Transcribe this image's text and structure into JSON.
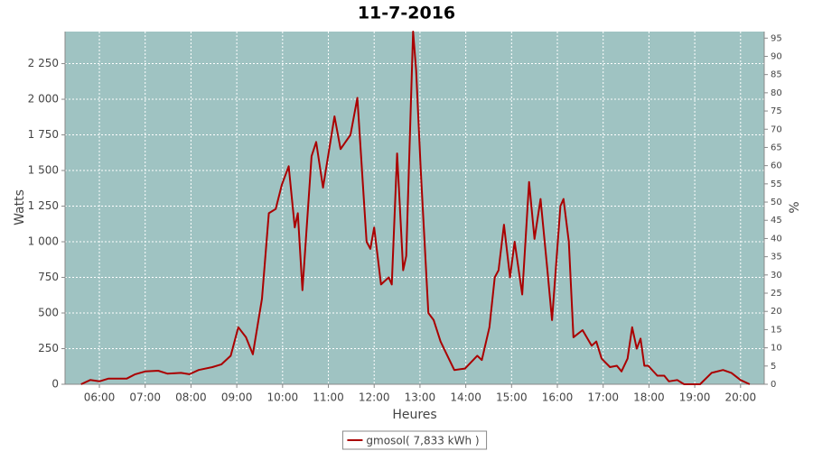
{
  "chart_data": {
    "type": "line",
    "title": "11-7-2016",
    "x_label": "Heures",
    "y_label": "Watts",
    "y2_label": "%",
    "xlim": [
      "05:15",
      "20:31"
    ],
    "ylim": [
      0,
      2475
    ],
    "y2lim": [
      0,
      96.8
    ],
    "xticks": [
      "06:00",
      "07:00",
      "08:00",
      "09:00",
      "10:00",
      "11:00",
      "12:00",
      "13:00",
      "14:00",
      "15:00",
      "16:00",
      "17:00",
      "18:00",
      "19:00",
      "20:00"
    ],
    "yticks": [
      0,
      250,
      500,
      750,
      {
        "value": 1000,
        "label": "1 000"
      },
      {
        "value": 1250,
        "label": "1 250"
      },
      {
        "value": 1500,
        "label": "1 500"
      },
      {
        "value": 1750,
        "label": "1 750"
      },
      {
        "value": 2000,
        "label": "2 000"
      },
      {
        "value": 2250,
        "label": "2 250"
      }
    ],
    "y2ticks": [
      0,
      5,
      10,
      15,
      20,
      25,
      30,
      35,
      40,
      45,
      50,
      55,
      60,
      65,
      70,
      75,
      80,
      85,
      90,
      95
    ],
    "grid": true,
    "background": "#9fc3c2",
    "legend": "bottom",
    "x": [
      "05:36",
      "05:48",
      "06:00",
      "06:12",
      "06:36",
      "06:47",
      "07:00",
      "07:17",
      "07:29",
      "07:47",
      "07:58",
      "08:10",
      "08:28",
      "08:40",
      "08:52",
      "09:02",
      "09:12",
      "09:21",
      "09:33",
      "09:42",
      "09:51",
      "09:59",
      "10:08",
      "10:16",
      "10:20",
      "10:26",
      "10:38",
      "10:44",
      "10:53",
      "11:08",
      "11:16",
      "11:29",
      "11:38",
      "11:50",
      "11:55",
      "12:00",
      "12:09",
      "12:19",
      "12:23",
      "12:30",
      "12:38",
      "12:42",
      "12:51",
      "12:55",
      "13:01",
      "13:11",
      "13:18",
      "13:27",
      "13:36",
      "13:45",
      "13:59",
      "14:15",
      "14:21",
      "14:31",
      "14:38",
      "14:43",
      "14:50",
      "14:58",
      "15:04",
      "15:14",
      "15:23",
      "15:30",
      "15:38",
      "15:47",
      "15:53",
      "16:04",
      "16:08",
      "16:15",
      "16:21",
      "16:33",
      "16:45",
      "16:51",
      "16:58",
      "17:09",
      "17:18",
      "17:24",
      "17:32",
      "17:38",
      "17:44",
      "17:49",
      "17:54",
      "17:59",
      "18:11",
      "18:20",
      "18:26",
      "18:37",
      "18:46",
      "19:07",
      "19:22",
      "19:37",
      "19:48",
      "20:00",
      "20:12"
    ],
    "series": [
      {
        "name": "gmosol( 7,833 kWh )",
        "color": "#aa0000",
        "values": [
          0,
          30,
          20,
          40,
          40,
          70,
          90,
          95,
          75,
          80,
          70,
          100,
          120,
          140,
          200,
          400,
          330,
          210,
          600,
          1200,
          1230,
          1400,
          1530,
          1100,
          1200,
          660,
          1600,
          1700,
          1380,
          1880,
          1650,
          1750,
          2010,
          1000,
          950,
          1100,
          700,
          750,
          700,
          1620,
          800,
          900,
          2475,
          2200,
          1500,
          500,
          450,
          300,
          200,
          100,
          110,
          200,
          170,
          400,
          750,
          800,
          1120,
          750,
          1000,
          630,
          1420,
          1020,
          1300,
          800,
          450,
          1250,
          1300,
          1000,
          330,
          380,
          270,
          300,
          180,
          120,
          130,
          90,
          180,
          400,
          250,
          320,
          130,
          130,
          60,
          60,
          20,
          30,
          0,
          0,
          80,
          100,
          80,
          30,
          0
        ]
      }
    ]
  }
}
